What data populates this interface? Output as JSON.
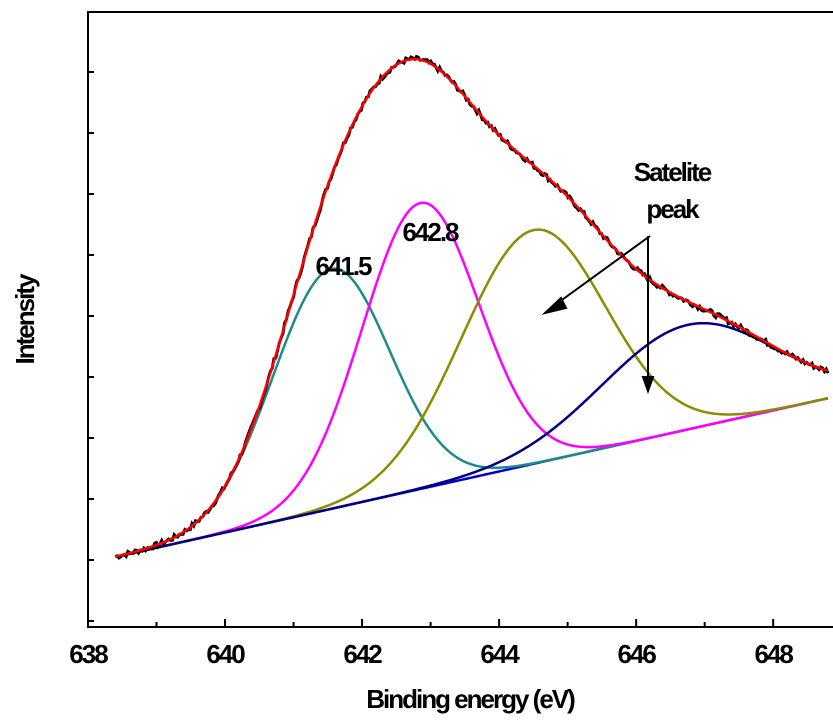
{
  "chart_data": {
    "type": "line",
    "title": "",
    "xlabel": "Binding energy (eV)",
    "ylabel": "Intensity",
    "xlim": [
      638,
      648.8
    ],
    "ylim": [
      0,
      100
    ],
    "x_ticks": [
      638,
      640,
      642,
      644,
      646,
      648
    ],
    "x_tick_labels": [
      "638",
      "640",
      "642",
      "644",
      "646",
      "648"
    ],
    "y_tick_labels_shown": false,
    "grid": false,
    "background_line": {
      "start": [
        638.4,
        11.4
      ],
      "end": [
        648.8,
        37.2
      ]
    },
    "peaks": [
      {
        "label": "641.5",
        "center": 641.55,
        "height": 39.0,
        "sigma": 0.85,
        "color": "#1f8a8a"
      },
      {
        "label": "642.8",
        "center": 642.85,
        "height": 46.5,
        "sigma": 0.85,
        "color": "#ff00ff"
      },
      {
        "label": "",
        "center": 644.5,
        "height": 38.0,
        "sigma": 1.05,
        "color": "#8c8c00"
      },
      {
        "label": "",
        "center": 646.75,
        "height": 17.0,
        "sigma": 1.25,
        "color": "#000080"
      }
    ],
    "series": [
      {
        "name": "",
        "role": "raw data",
        "color": "#000000"
      },
      {
        "name": "",
        "role": "envelope",
        "color": "#ff0000"
      },
      {
        "name": "",
        "role": "background",
        "color": "#0000cc"
      }
    ],
    "annotations": [
      {
        "text": "641.5",
        "x": 641.5,
        "y": 73
      },
      {
        "text": "642.8",
        "x": 642.8,
        "y": 83
      },
      {
        "text": "Satelite",
        "x": 646.5,
        "y": 114
      },
      {
        "text": "peak",
        "x": 646.5,
        "y": 105
      }
    ]
  }
}
